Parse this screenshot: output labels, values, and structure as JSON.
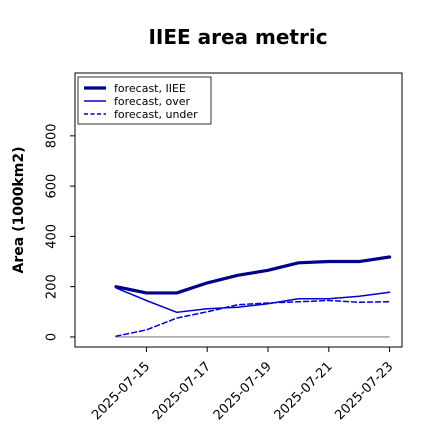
{
  "chart_data": {
    "type": "line",
    "title": "IIEE area metric",
    "xlabel": "",
    "ylabel": "Area (1000km2)",
    "x": [
      "2025-07-14",
      "2025-07-15",
      "2025-07-16",
      "2025-07-17",
      "2025-07-18",
      "2025-07-19",
      "2025-07-20",
      "2025-07-21",
      "2025-07-22",
      "2025-07-23"
    ],
    "xticks": [
      "2025-07-15",
      "2025-07-17",
      "2025-07-19",
      "2025-07-21",
      "2025-07-23"
    ],
    "highlighted_xtick": "2025-07-15",
    "highlight_color": "#228B22",
    "ylim": [
      -40,
      1050
    ],
    "yticks": [
      0,
      200,
      400,
      600,
      800
    ],
    "grid": false,
    "legend_position": "top-left",
    "series": [
      {
        "name": "forecast, IIEE",
        "color": "#00008B",
        "style": "solid-thick",
        "values": [
          200,
          175,
          175,
          215,
          245,
          265,
          295,
          300,
          300,
          318
        ]
      },
      {
        "name": "forecast, over",
        "color": "#0000CD",
        "style": "solid",
        "values": [
          195,
          145,
          98,
          112,
          118,
          132,
          152,
          152,
          162,
          178
        ]
      },
      {
        "name": "forecast, under",
        "color": "#0000CD",
        "style": "dashed",
        "values": [
          3,
          28,
          75,
          100,
          128,
          135,
          140,
          145,
          138,
          140
        ]
      }
    ],
    "baseline": {
      "value": 0,
      "color": "#808080"
    }
  }
}
